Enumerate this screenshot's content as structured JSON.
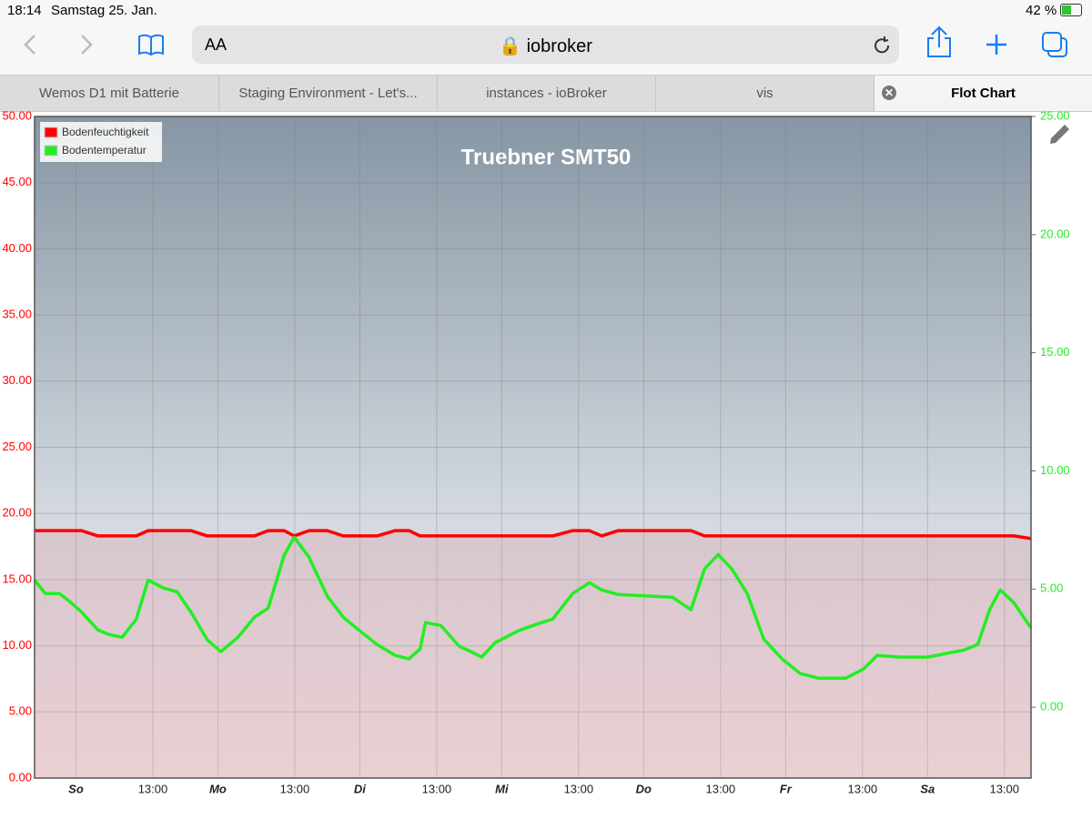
{
  "status_bar": {
    "time": "18:14",
    "date": "Samstag 25. Jan.",
    "battery": "42 %"
  },
  "browser": {
    "text_size": "AA",
    "address": "iobroker"
  },
  "tabs": [
    "Wemos D1 mit Batterie",
    "Staging Environment - Let's...",
    "instances - ioBroker",
    "vis",
    "Flot Chart"
  ],
  "chart_data": {
    "type": "line",
    "title": "Truebner SMT50",
    "x": [
      -7,
      -5.2,
      -2.8,
      -1.2,
      0.9,
      3.7,
      5.5,
      7.8,
      10.2,
      12.2,
      14.8,
      17.1,
      19.4,
      22.2,
      24.5,
      27.4,
      30.2,
      32.5,
      35.2,
      36.9,
      39.4,
      42.5,
      45.2,
      47.8,
      50.9,
      54,
      56.3,
      58.2,
      59.1,
      61.7,
      64.8,
      67.1,
      68.6,
      70.9,
      74.8,
      77.8,
      80.6,
      84,
      86.8,
      88.9,
      91.7,
      100.9,
      104,
      106.3,
      108.6,
      110.9,
      113.5,
      116.3,
      119.4,
      122.5,
      125.5,
      130.2,
      133.2,
      135.5,
      139.4,
      144,
      147.1,
      150.2,
      152.5,
      154.5,
      156.3,
      158.6,
      161.5
    ],
    "xlim": [
      -7,
      161.5
    ],
    "xticks": [
      {
        "value": 0,
        "label": "So"
      },
      {
        "value": 13,
        "label": "13:00"
      },
      {
        "value": 24,
        "label": "Mo"
      },
      {
        "value": 37,
        "label": "13:00"
      },
      {
        "value": 48,
        "label": "Di"
      },
      {
        "value": 61,
        "label": "13:00"
      },
      {
        "value": 72,
        "label": "Mi"
      },
      {
        "value": 85,
        "label": "13:00"
      },
      {
        "value": 96,
        "label": "Do"
      },
      {
        "value": 109,
        "label": "13:00"
      },
      {
        "value": 120,
        "label": "Fr"
      },
      {
        "value": 133,
        "label": "13:00"
      },
      {
        "value": 144,
        "label": "Sa"
      },
      {
        "value": 157,
        "label": "13:00"
      }
    ],
    "ylim": [
      0,
      50
    ],
    "yticks": [
      {
        "value": 0,
        "label": "0.00"
      },
      {
        "value": 5,
        "label": "5.00"
      },
      {
        "value": 10,
        "label": "10.00"
      },
      {
        "value": 15,
        "label": "15.00"
      },
      {
        "value": 20,
        "label": "20.00"
      },
      {
        "value": 25,
        "label": "25.00"
      },
      {
        "value": 30,
        "label": "30.00"
      },
      {
        "value": 35,
        "label": "35.00"
      },
      {
        "value": 40,
        "label": "40.00"
      },
      {
        "value": 45,
        "label": "45.00"
      },
      {
        "value": 50,
        "label": "50.00"
      }
    ],
    "y2lim": [
      -3,
      25
    ],
    "y2ticks": [
      {
        "value": 0,
        "label": "0.00"
      },
      {
        "value": 5,
        "label": "5.00"
      },
      {
        "value": 10,
        "label": "10.00"
      },
      {
        "value": 15,
        "label": "15.00"
      },
      {
        "value": 20,
        "label": "20.00"
      },
      {
        "value": 25,
        "label": "25.00"
      }
    ],
    "grid": true,
    "legend": "top-left",
    "series": [
      {
        "name": "Bodenfeuchtigkeit",
        "color": "#ff0000",
        "values": [
          18.7,
          18.7,
          18.7,
          18.7,
          18.7,
          18.3,
          18.3,
          18.3,
          18.3,
          18.7,
          18.7,
          18.7,
          18.7,
          18.3,
          18.3,
          18.3,
          18.3,
          18.7,
          18.7,
          18.3,
          18.7,
          18.7,
          18.3,
          18.3,
          18.3,
          18.7,
          18.7,
          18.3,
          18.3,
          18.3,
          18.3,
          18.3,
          18.3,
          18.3,
          18.3,
          18.3,
          18.3,
          18.7,
          18.7,
          18.3,
          18.7,
          18.7,
          18.7,
          18.3,
          18.3,
          18.3,
          18.3,
          18.3,
          18.3,
          18.3,
          18.3,
          18.3,
          18.3,
          18.3,
          18.3,
          18.3,
          18.3,
          18.3,
          18.3,
          18.3,
          18.3,
          18.3,
          18.1
        ]
      },
      {
        "name": "Bodentemperatur",
        "color": "#22ee22",
        "axis": "y2",
        "values": [
          5.38,
          4.81,
          4.81,
          4.5,
          4.04,
          3.27,
          3.08,
          2.96,
          3.73,
          5.38,
          5.04,
          4.88,
          4.04,
          2.85,
          2.35,
          2.96,
          3.81,
          4.19,
          6.42,
          7.19,
          6.35,
          4.69,
          3.81,
          3.27,
          2.65,
          2.19,
          2.04,
          2.46,
          3.58,
          3.46,
          2.58,
          2.31,
          2.12,
          2.73,
          3.23,
          3.5,
          3.73,
          4.81,
          5.27,
          4.96,
          4.77,
          4.65,
          4.12,
          5.85,
          6.46,
          5.85,
          4.81,
          2.88,
          2.04,
          1.42,
          1.23,
          1.23,
          1.62,
          2.19,
          2.12,
          2.12,
          2.27,
          2.42,
          2.65,
          4.12,
          4.96,
          4.42,
          3.35
        ]
      }
    ]
  }
}
